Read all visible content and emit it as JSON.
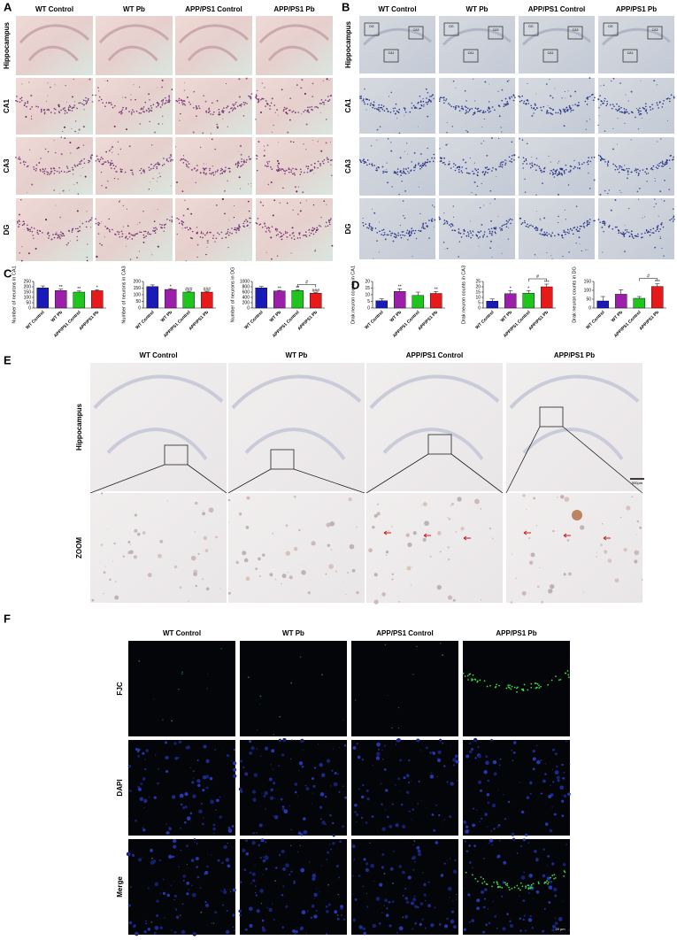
{
  "A": {
    "label": "A",
    "columns": [
      "WT Control",
      "WT Pb",
      "APP/PS1 Control",
      "APP/PS1 Pb"
    ],
    "rows": [
      "Hippocampus",
      "CA1",
      "CA3",
      "DG"
    ]
  },
  "B": {
    "label": "B",
    "columns": [
      "WT Control",
      "WT Pb",
      "APP/PS1 Control",
      "APP/PS1 Pb"
    ],
    "rows": [
      "Hippocampus",
      "CA1",
      "CA3",
      "DG"
    ],
    "box_labels": [
      "DG",
      "CA3",
      "CA1"
    ]
  },
  "C": {
    "label": "C"
  },
  "D": {
    "label": "D"
  },
  "E": {
    "label": "E",
    "columns": [
      "WT Control",
      "WT Pb",
      "APP/PS1 Control",
      "APP/PS1 Pb"
    ],
    "rows": [
      "Hippocampus",
      "ZOOM"
    ],
    "scale_bar": "500μm"
  },
  "F": {
    "label": "F",
    "columns": [
      "WT Control",
      "WT Pb",
      "APP/PS1 Control",
      "APP/PS1 Pb"
    ],
    "rows": [
      "FJC",
      "DAPI",
      "Merge"
    ],
    "scale_bar": "20 µm"
  },
  "chart_data": [
    {
      "type": "bar",
      "ylabel": "Number of neurons in CA1",
      "categories": [
        "WT Control",
        "WT Pb",
        "APP/PS1 Control",
        "APP/PS1 Pb"
      ],
      "values": [
        190,
        165,
        150,
        163
      ],
      "errors": [
        18,
        12,
        10,
        10
      ],
      "colors": [
        "#1a1ab8",
        "#9b1fa8",
        "#1fc41f",
        "#e61a1a"
      ],
      "annotations": [
        null,
        "**",
        "**",
        "*"
      ],
      "ylim": [
        0,
        250
      ],
      "yticks": [
        0,
        50,
        100,
        150,
        200,
        250
      ]
    },
    {
      "type": "bar",
      "ylabel": "Number of neurons in CA3",
      "categories": [
        "WT Control",
        "WT Pb",
        "APP/PS1 Control",
        "APP/PS1 Pb"
      ],
      "values": [
        162,
        140,
        120,
        120
      ],
      "errors": [
        12,
        6,
        6,
        6
      ],
      "colors": [
        "#1a1ab8",
        "#9b1fa8",
        "#1fc41f",
        "#e61a1a"
      ],
      "annotations": [
        null,
        "*",
        "###",
        "###"
      ],
      "ylim": [
        0,
        200
      ],
      "yticks": [
        0,
        50,
        100,
        150,
        200
      ]
    },
    {
      "type": "bar",
      "ylabel": "Number of neurons in DG",
      "categories": [
        "WT Control",
        "WT Pb",
        "APP/PS1 Control",
        "APP/PS1 Pb"
      ],
      "values": [
        760,
        640,
        660,
        560
      ],
      "errors": [
        50,
        25,
        25,
        20
      ],
      "colors": [
        "#1a1ab8",
        "#9b1fa8",
        "#1fc41f",
        "#e61a1a"
      ],
      "annotations": [
        null,
        "**",
        "**",
        "###"
      ],
      "bracket": {
        "between": [
          "APP/PS1 Control",
          "APP/PS1 Pb"
        ],
        "label": "#"
      },
      "ylim": [
        0,
        1000
      ],
      "yticks": [
        0,
        200,
        400,
        600,
        800,
        1000
      ]
    },
    {
      "type": "bar",
      "ylabel": "Drak neuron counts in CA1",
      "categories": [
        "WT Control",
        "WT Pb",
        "APP/PS1 Control",
        "APP/PS1 Pb"
      ],
      "values": [
        5.5,
        12.5,
        9.5,
        11
      ],
      "errors": [
        1.5,
        2,
        2.5,
        1.5
      ],
      "colors": [
        "#1a1ab8",
        "#9b1fa8",
        "#1fc41f",
        "#e61a1a"
      ],
      "annotations": [
        null,
        "**",
        null,
        "**"
      ],
      "ylim": [
        0,
        20
      ],
      "yticks": [
        0,
        5,
        10,
        15,
        20
      ]
    },
    {
      "type": "bar",
      "ylabel": "Drak neuron counts in CA3",
      "categories": [
        "WT Control",
        "WT Pb",
        "APP/PS1 Control",
        "APP/PS1 Pb"
      ],
      "values": [
        6.5,
        13.5,
        14,
        20
      ],
      "errors": [
        2,
        3,
        2.5,
        2.5
      ],
      "colors": [
        "#1a1ab8",
        "#9b1fa8",
        "#1fc41f",
        "#e61a1a"
      ],
      "annotations": [
        null,
        "*",
        "*",
        "***"
      ],
      "bracket": {
        "between": [
          "APP/PS1 Control",
          "APP/PS1 Pb"
        ],
        "label": "#"
      },
      "ylim": [
        0,
        25
      ],
      "yticks": [
        0,
        5,
        10,
        15,
        20,
        25
      ]
    },
    {
      "type": "bar",
      "ylabel": "Drak neuron counts in DG",
      "categories": [
        "WT Control",
        "WT Pb",
        "APP/PS1 Control",
        "APP/PS1 Pb"
      ],
      "values": [
        40,
        78,
        55,
        122
      ],
      "errors": [
        25,
        25,
        10,
        15
      ],
      "colors": [
        "#1a1ab8",
        "#9b1fa8",
        "#1fc41f",
        "#e61a1a"
      ],
      "annotations": [
        null,
        null,
        null,
        "***"
      ],
      "bracket": {
        "between": [
          "APP/PS1 Control",
          "APP/PS1 Pb"
        ],
        "label": "#"
      },
      "ylim": [
        0,
        150
      ],
      "yticks": [
        0,
        50,
        100,
        150
      ]
    }
  ]
}
